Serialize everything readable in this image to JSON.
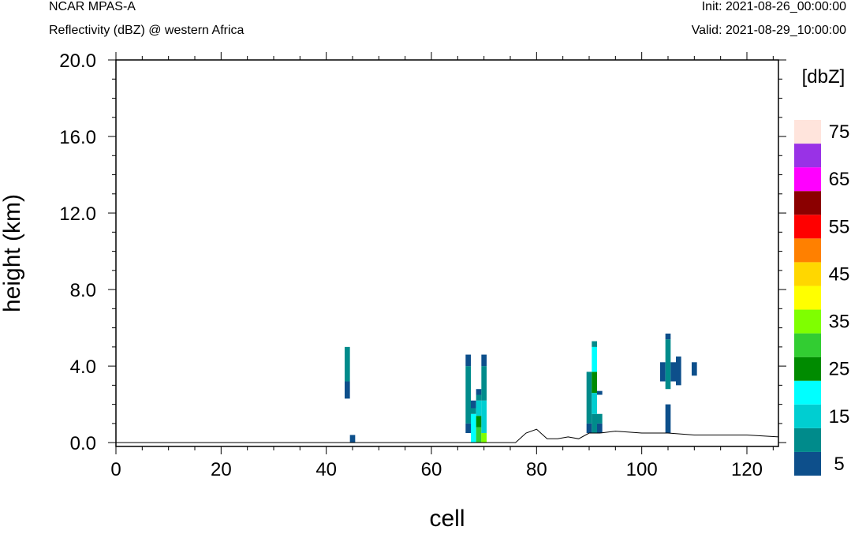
{
  "header": {
    "model": "NCAR MPAS-A",
    "field": "Reflectivity (dBZ) @ western Africa",
    "init": "Init: 2021-08-26_00:00:00",
    "valid": "Valid: 2021-08-29_10:00:00"
  },
  "chart_data": {
    "type": "heatmap",
    "xlabel": "cell",
    "ylabel": "height (km)",
    "xlim": [
      0,
      126
    ],
    "ylim": [
      -0.2,
      20
    ],
    "x_ticks": [
      "0",
      "20",
      "40",
      "60",
      "80",
      "100",
      "120"
    ],
    "y_ticks": [
      "0.0",
      "4.0",
      "8.0",
      "12.0",
      "16.0",
      "20.0"
    ],
    "colorbar": {
      "unit": "[dbZ]",
      "labels": [
        "5",
        "15",
        "25",
        "35",
        "45",
        "55",
        "65",
        "75"
      ],
      "colors": [
        "#0d4f8b",
        "#008b8b",
        "#00ced1",
        "#00ffff",
        "#008b00",
        "#32cd32",
        "#7fff00",
        "#ffff00",
        "#ffd700",
        "#ff8000",
        "#ff0000",
        "#8b0000",
        "#ff00ff",
        "#9932e6",
        "#ffe4dc"
      ]
    },
    "cells": [
      {
        "x": 44,
        "y0": 2.3,
        "y1": 3.2,
        "c": 0
      },
      {
        "x": 44,
        "y0": 3.2,
        "y1": 5.0,
        "c": 1
      },
      {
        "x": 45,
        "y0": 0.0,
        "y1": 0.4,
        "c": 0
      },
      {
        "x": 67,
        "y0": 0.5,
        "y1": 1.0,
        "c": 0
      },
      {
        "x": 67,
        "y0": 1.0,
        "y1": 4.0,
        "c": 1
      },
      {
        "x": 67,
        "y0": 4.0,
        "y1": 4.6,
        "c": 0
      },
      {
        "x": 68,
        "y0": 0.0,
        "y1": 1.5,
        "c": 3
      },
      {
        "x": 68,
        "y0": 1.5,
        "y1": 1.8,
        "c": 1
      },
      {
        "x": 68,
        "y0": 1.8,
        "y1": 2.2,
        "c": 0
      },
      {
        "x": 69,
        "y0": 0.0,
        "y1": 0.8,
        "c": 5
      },
      {
        "x": 69,
        "y0": 0.8,
        "y1": 1.4,
        "c": 4
      },
      {
        "x": 69,
        "y0": 1.4,
        "y1": 2.2,
        "c": 2
      },
      {
        "x": 69,
        "y0": 2.2,
        "y1": 2.5,
        "c": 1
      },
      {
        "x": 69,
        "y0": 2.5,
        "y1": 2.8,
        "c": 0
      },
      {
        "x": 70,
        "y0": 0.0,
        "y1": 0.5,
        "c": 6
      },
      {
        "x": 70,
        "y0": 0.5,
        "y1": 2.2,
        "c": 2
      },
      {
        "x": 70,
        "y0": 2.2,
        "y1": 4.0,
        "c": 1
      },
      {
        "x": 70,
        "y0": 4.0,
        "y1": 4.6,
        "c": 0
      },
      {
        "x": 90,
        "y0": 0.5,
        "y1": 1.0,
        "c": 0
      },
      {
        "x": 90,
        "y0": 1.0,
        "y1": 3.7,
        "c": 1
      },
      {
        "x": 91,
        "y0": 0.5,
        "y1": 1.5,
        "c": 1
      },
      {
        "x": 91,
        "y0": 1.5,
        "y1": 2.6,
        "c": 2
      },
      {
        "x": 91,
        "y0": 2.6,
        "y1": 3.7,
        "c": 4
      },
      {
        "x": 91,
        "y0": 3.7,
        "y1": 5.0,
        "c": 3
      },
      {
        "x": 91,
        "y0": 5.0,
        "y1": 5.3,
        "c": 1
      },
      {
        "x": 92,
        "y0": 0.5,
        "y1": 1.0,
        "c": 0
      },
      {
        "x": 92,
        "y0": 1.0,
        "y1": 1.5,
        "c": 1
      },
      {
        "x": 92,
        "y0": 2.5,
        "y1": 2.7,
        "c": 0
      },
      {
        "x": 104,
        "y0": 3.2,
        "y1": 4.2,
        "c": 0
      },
      {
        "x": 105,
        "y0": 0.5,
        "y1": 2.0,
        "c": 0
      },
      {
        "x": 105,
        "y0": 2.8,
        "y1": 5.4,
        "c": 1
      },
      {
        "x": 105,
        "y0": 5.4,
        "y1": 5.7,
        "c": 0
      },
      {
        "x": 106,
        "y0": 3.2,
        "y1": 4.2,
        "c": 0
      },
      {
        "x": 107,
        "y0": 3.0,
        "y1": 4.5,
        "c": 0
      },
      {
        "x": 110,
        "y0": 3.5,
        "y1": 4.2,
        "c": 0
      }
    ],
    "terrain": [
      [
        0,
        0.0
      ],
      [
        76,
        0.0
      ],
      [
        78,
        0.5
      ],
      [
        80,
        0.7
      ],
      [
        82,
        0.2
      ],
      [
        84,
        0.2
      ],
      [
        86,
        0.3
      ],
      [
        88,
        0.2
      ],
      [
        90,
        0.5
      ],
      [
        92,
        0.5
      ],
      [
        95,
        0.6
      ],
      [
        100,
        0.5
      ],
      [
        105,
        0.5
      ],
      [
        110,
        0.4
      ],
      [
        115,
        0.4
      ],
      [
        120,
        0.4
      ],
      [
        126,
        0.3
      ]
    ]
  }
}
